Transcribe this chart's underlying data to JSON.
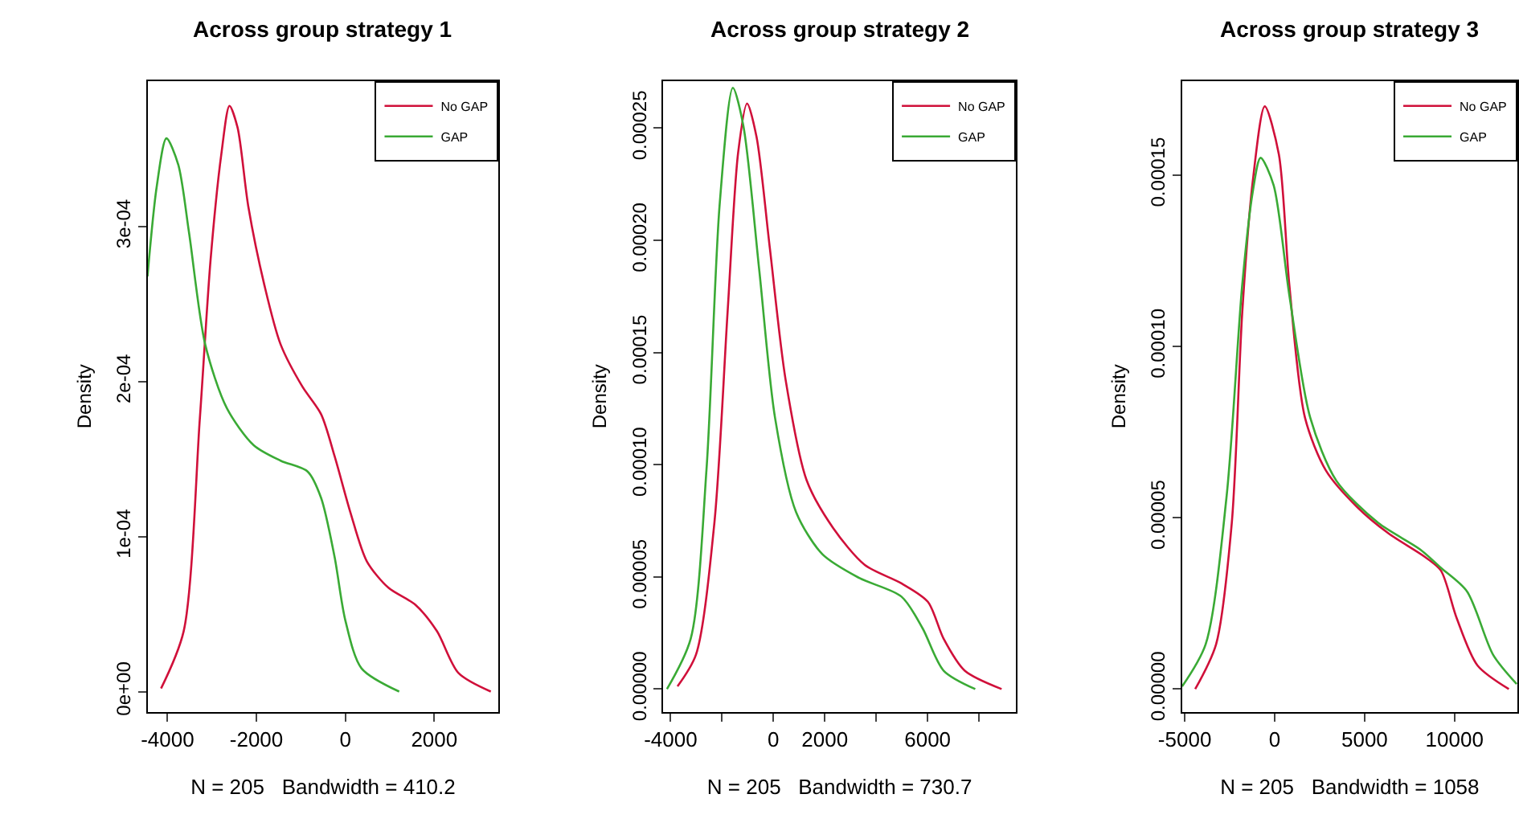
{
  "chart_data": [
    {
      "type": "line",
      "title": "Across group strategy 1",
      "xlabel": "N = 205   Bandwidth = 410.2",
      "ylabel": "Density",
      "legend": "top right",
      "line_style": "solid",
      "marker": "none",
      "xlim": [
        -4450,
        3450
      ],
      "ylim": [
        -1.3e-05,
        0.000394
      ],
      "xticks": [
        -4000,
        -2000,
        0,
        2000
      ],
      "yticks": [
        {
          "value": 0,
          "label": "0e+00"
        },
        {
          "value": 0.0001,
          "label": "1e-04"
        },
        {
          "value": 0.0002,
          "label": "2e-04"
        },
        {
          "value": 0.0003,
          "label": "3e-04"
        }
      ],
      "series": [
        {
          "name": "No GAP",
          "color": "#d0103a",
          "x": [
            -4145,
            -3636,
            -3273,
            -3030,
            -2788,
            -2606,
            -2424,
            -2182,
            -1818,
            -1455,
            -970,
            -545,
            -242,
            121,
            485,
            970,
            1576,
            2061,
            2545,
            3273
          ],
          "values": [
            2e-06,
            3.9e-05,
            0.000176,
            0.000279,
            0.000347,
            0.000378,
            0.000364,
            0.000313,
            0.000262,
            0.000224,
            0.000197,
            0.000179,
            0.000152,
            0.000115,
            8.4e-05,
            6.7e-05,
            5.6e-05,
            3.9e-05,
            1.2e-05,
            0
          ]
        },
        {
          "name": "GAP",
          "color": "#3aaa35",
          "x": [
            -4450,
            -4242,
            -4024,
            -3758,
            -3515,
            -3152,
            -2667,
            -2061,
            -1455,
            -848,
            -545,
            -242,
            0,
            364,
            1212
          ],
          "values": [
            0.000268,
            0.000326,
            0.000357,
            0.00034,
            0.000296,
            0.000224,
            0.000183,
            0.000159,
            0.000149,
            0.000142,
            0.000125,
            8.7e-05,
            4.6e-05,
            1.5e-05,
            0
          ]
        }
      ]
    },
    {
      "type": "line",
      "title": "Across group strategy 2",
      "xlabel": "N = 205   Bandwidth = 730.7",
      "ylabel": "Density",
      "legend": "top right",
      "line_style": "solid",
      "marker": "none",
      "xlim": [
        -4290,
        9440
      ],
      "ylim": [
        -1.01e-05,
        0.000271
      ],
      "xticks": [
        -4000,
        {
          "value": -2000,
          "label": null
        },
        0,
        2000,
        {
          "value": 4000,
          "label": null
        },
        6000,
        {
          "value": 8000,
          "label": null
        }
      ],
      "yticks": [
        {
          "value": 0,
          "label": "0.00000"
        },
        {
          "value": 5e-05,
          "label": "0.00005"
        },
        {
          "value": 0.0001,
          "label": "0.00010"
        },
        {
          "value": 0.00015,
          "label": "0.00015"
        },
        {
          "value": 0.0002,
          "label": "0.00020"
        },
        {
          "value": 0.00025,
          "label": "0.00025"
        }
      ],
      "series": [
        {
          "name": "No GAP",
          "color": "#d0103a",
          "x": [
            -3733,
            -3015,
            -2297,
            -1784,
            -1374,
            -1026,
            -656,
            -144,
            472,
            1292,
            2318,
            3549,
            4984,
            6010,
            6626,
            7446,
            8881
          ],
          "values": [
            1.2e-06,
            1.53e-05,
            7.42e-05,
            0.000168,
            0.000239,
            0.000261,
            0.000246,
            0.000197,
            0.000138,
            9.31e-05,
            7.19e-05,
            5.54e-05,
            4.71e-05,
            3.89e-05,
            2.24e-05,
            8.2e-06,
            0
          ]
        },
        {
          "name": "GAP",
          "color": "#3aaa35",
          "x": [
            -4143,
            -3220,
            -2605,
            -2092,
            -1579,
            -1169,
            -554,
            62,
            882,
            1907,
            3343,
            4984,
            5805,
            6626,
            7856
          ],
          "values": [
            0,
            2.24e-05,
            9.78e-05,
            0.000216,
            0.000268,
            0.000251,
            0.000187,
            0.000121,
            7.89e-05,
            6.01e-05,
            4.95e-05,
            4.12e-05,
            2.71e-05,
            8.2e-06,
            0
          ]
        }
      ]
    },
    {
      "type": "line",
      "title": "Across group strategy 3",
      "xlabel": "N = 205   Bandwidth = 1058",
      "ylabel": "Density",
      "legend": "top right",
      "line_style": "solid",
      "marker": "none",
      "xlim": [
        -5150,
        13500
      ],
      "ylim": [
        -6.6e-06,
        0.0001774
      ],
      "xticks": [
        -5000,
        0,
        5000,
        10000
      ],
      "yticks": [
        {
          "value": 0,
          "label": "0.00000"
        },
        {
          "value": 5e-05,
          "label": "0.00005"
        },
        {
          "value": 0.0001,
          "label": "0.00010"
        },
        {
          "value": 0.00015,
          "label": "0.00015"
        }
      ],
      "series": [
        {
          "name": "No GAP",
          "color": "#d0103a",
          "x": [
            -4419,
            -3256,
            -2384,
            -1802,
            -1221,
            -552,
            233,
            814,
            1686,
            2849,
            4593,
            6337,
            8372,
            9244,
            10116,
            11279,
            13023
          ],
          "values": [
            0,
            1.31e-05,
            4.85e-05,
            0.00011,
            0.000148,
            0.00017,
            0.000156,
            0.000118,
            7.92e-05,
            6.38e-05,
            5.31e-05,
            4.54e-05,
            3.85e-05,
            3.46e-05,
            2.08e-05,
            6.9e-06,
            0
          ]
        },
        {
          "name": "GAP",
          "color": "#3aaa35",
          "x": [
            -5145,
            -3837,
            -2674,
            -1802,
            -1221,
            -785,
            -58,
            814,
            1977,
            3430,
            5756,
            8081,
            9244,
            10698,
            12151,
            13459
          ],
          "values": [
            8e-07,
            1.31e-05,
            5.62e-05,
            0.000118,
            0.000145,
            0.000155,
            0.000147,
            0.000115,
            7.92e-05,
            6.08e-05,
            4.85e-05,
            4.08e-05,
            3.54e-05,
            2.85e-05,
            1e-05,
            1.5e-06
          ]
        }
      ]
    }
  ]
}
